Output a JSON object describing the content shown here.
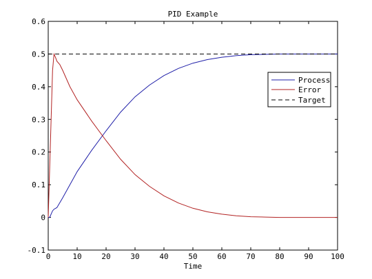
{
  "chart_data": {
    "type": "line",
    "title": "PID Example",
    "xlabel": "Time",
    "ylabel": "",
    "xlim": [
      0,
      100
    ],
    "ylim": [
      -0.1,
      0.6
    ],
    "xticks": [
      0,
      10,
      20,
      30,
      40,
      50,
      60,
      70,
      80,
      90,
      100
    ],
    "yticks": [
      -0.1,
      0,
      0.1,
      0.2,
      0.3,
      0.4,
      0.5,
      0.6
    ],
    "ytick_labels": [
      "-0.1",
      "0",
      "0.1",
      "0.2",
      "0.3",
      "0.4",
      "0.5",
      "0.6"
    ],
    "grid": false,
    "legend_position": "top-right",
    "series": [
      {
        "name": "Process",
        "color": "#1f1fa8",
        "style": "solid",
        "x": [
          0,
          0.5,
          1,
          1.5,
          2,
          3,
          4,
          5,
          7.5,
          10,
          15,
          20,
          25,
          30,
          35,
          40,
          45,
          50,
          55,
          60,
          65,
          70,
          75,
          80,
          90,
          100
        ],
        "y": [
          0,
          0,
          0.01,
          0.02,
          0.025,
          0.03,
          0.045,
          0.06,
          0.1,
          0.14,
          0.205,
          0.265,
          0.322,
          0.369,
          0.405,
          0.434,
          0.456,
          0.472,
          0.483,
          0.49,
          0.495,
          0.498,
          0.499,
          0.5,
          0.5,
          0.5
        ]
      },
      {
        "name": "Error",
        "color": "#b22222",
        "style": "solid",
        "x": [
          0,
          1,
          1.5,
          2,
          2.5,
          3,
          4,
          5,
          7.5,
          10,
          15,
          20,
          25,
          30,
          35,
          40,
          45,
          50,
          55,
          60,
          65,
          70,
          75,
          80,
          90,
          100
        ],
        "y": [
          0,
          0.3,
          0.45,
          0.5,
          0.49,
          0.478,
          0.468,
          0.45,
          0.4,
          0.36,
          0.295,
          0.235,
          0.178,
          0.131,
          0.095,
          0.066,
          0.044,
          0.028,
          0.017,
          0.01,
          0.005,
          0.002,
          0.001,
          0,
          0,
          0
        ]
      },
      {
        "name": "Target",
        "color": "#000000",
        "style": "dashed",
        "x": [
          0,
          100
        ],
        "y": [
          0.5,
          0.5
        ]
      }
    ]
  }
}
